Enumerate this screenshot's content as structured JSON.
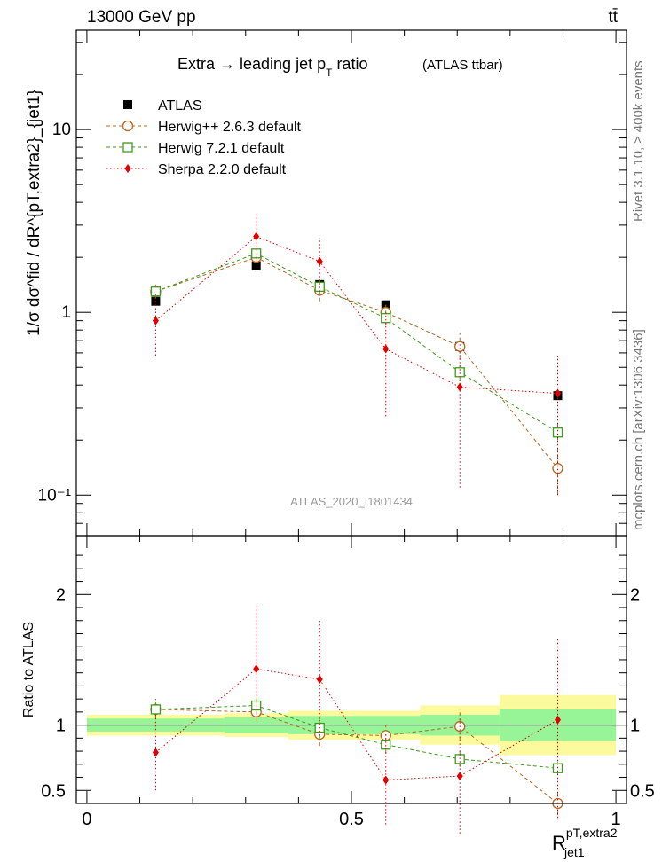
{
  "header": {
    "left": "13000 GeV pp",
    "right": "tt̄"
  },
  "side_labels": {
    "rivet": "Rivet 3.1.10, ≥ 400k events",
    "mcplots": "mcplots.cern.ch [arXiv:1306.3436]"
  },
  "chart_data": [
    {
      "type": "line",
      "panel": "main",
      "title_main": "Extra → leading jet p",
      "title_sub": "T",
      "title_end": " ratio",
      "title_tag": "(ATLAS ttbar)",
      "watermark": "ATLAS_2020_I1801434",
      "ylabel": "1/σ dσ^fid / dR^{pT,extra2}_{jet1}",
      "yscale": "log",
      "ylim": [
        0.06,
        35
      ],
      "xlim": [
        -0.02,
        1.02
      ],
      "ytick_labels": [
        "10⁻¹",
        "1",
        "10"
      ],
      "ytick_values": [
        0.1,
        1,
        10
      ],
      "legend_position": "top-left",
      "x": [
        0.13,
        0.32,
        0.44,
        0.565,
        0.705,
        0.89
      ],
      "series": [
        {
          "name": "ATLAS",
          "color": "#000000",
          "marker": "square-filled",
          "values": [
            1.15,
            1.8,
            1.42,
            1.1,
            0.65,
            0.35
          ]
        },
        {
          "name": "Herwig++ 2.6.3 default",
          "color": "#b8651f",
          "marker": "circle-open",
          "dash": "dashed",
          "values": [
            1.3,
            2.0,
            1.32,
            1.0,
            0.65,
            0.14
          ],
          "err_lo": [
            1.2,
            1.85,
            1.15,
            0.9,
            0.55,
            0.1
          ],
          "err_hi": [
            1.42,
            2.2,
            1.5,
            1.1,
            0.77,
            0.18
          ]
        },
        {
          "name": "Herwig 7.2.1 default",
          "color": "#3c9b1b",
          "marker": "square-open",
          "dash": "dashed",
          "values": [
            1.3,
            2.1,
            1.38,
            0.93,
            0.47,
            0.22
          ],
          "err_lo": [
            1.2,
            1.95,
            1.25,
            0.85,
            0.42,
            0.2
          ],
          "err_hi": [
            1.4,
            2.25,
            1.5,
            1.02,
            0.53,
            0.25
          ]
        },
        {
          "name": "Sherpa 2.2.0 default",
          "color": "#e00000",
          "marker": "diamond-filled",
          "dash": "dotted",
          "values": [
            0.9,
            2.6,
            1.9,
            0.63,
            0.39,
            0.36
          ],
          "err_lo": [
            0.58,
            1.9,
            1.3,
            0.27,
            0.11,
            0.1
          ],
          "err_hi": [
            1.25,
            3.45,
            2.55,
            1.02,
            0.68,
            0.58
          ]
        }
      ]
    },
    {
      "type": "line",
      "panel": "ratio",
      "ylabel": "Ratio to ATLAS",
      "xlabel": "R",
      "xlabel_sup": "pT,extra2",
      "xlabel_sub": "jet1",
      "ylim": [
        0.4,
        2.45
      ],
      "xlim": [
        -0.02,
        1.02
      ],
      "xtick_labels": [
        "0",
        "0.5",
        "1"
      ],
      "xtick_values": [
        0,
        0.5,
        1
      ],
      "ytick_labels": [
        "0.5",
        "1",
        "2"
      ],
      "ytick_values": [
        0.5,
        1,
        2
      ],
      "bin_edges": [
        0,
        0.26,
        0.38,
        0.5,
        0.63,
        0.78,
        1.0
      ],
      "band_inner": {
        "lo": [
          0.95,
          0.94,
          0.93,
          0.93,
          0.92,
          0.88
        ],
        "hi": [
          1.05,
          1.06,
          1.07,
          1.07,
          1.08,
          1.12
        ],
        "color": "#97f597"
      },
      "band_outer": {
        "lo": [
          0.92,
          0.91,
          0.89,
          0.89,
          0.85,
          0.77
        ],
        "hi": [
          1.08,
          1.09,
          1.11,
          1.11,
          1.15,
          1.23
        ],
        "color": "#fbfa9c"
      },
      "x": [
        0.13,
        0.32,
        0.44,
        0.565,
        0.705,
        0.89
      ],
      "series": [
        {
          "name": "Herwig++ 2.6.3 default",
          "color": "#b8651f",
          "marker": "circle-open",
          "dash": "dashed",
          "values": [
            1.12,
            1.1,
            0.93,
            0.92,
            0.99,
            0.4
          ],
          "err_lo": [
            1.05,
            1.03,
            0.84,
            0.84,
            0.88,
            0.31
          ],
          "err_hi": [
            1.2,
            1.17,
            1.03,
            1.0,
            1.12,
            0.48
          ]
        },
        {
          "name": "Herwig 7.2.1 default",
          "color": "#3c9b1b",
          "marker": "square-open",
          "dash": "dashed",
          "values": [
            1.12,
            1.15,
            0.98,
            0.85,
            0.74,
            0.67
          ],
          "err_lo": [
            1.05,
            1.08,
            0.9,
            0.78,
            0.68,
            0.62
          ],
          "err_hi": [
            1.2,
            1.23,
            1.06,
            0.93,
            0.81,
            0.72
          ]
        },
        {
          "name": "Sherpa 2.2.0 default",
          "color": "#e00000",
          "marker": "diamond-filled",
          "dash": "dotted",
          "values": [
            0.79,
            1.43,
            1.35,
            0.58,
            0.61,
            1.04
          ],
          "err_lo": [
            0.5,
            1.06,
            0.92,
            0.24,
            0.17,
            0.29
          ],
          "err_hi": [
            1.09,
            1.91,
            1.81,
            0.93,
            1.05,
            1.66
          ]
        }
      ]
    }
  ]
}
